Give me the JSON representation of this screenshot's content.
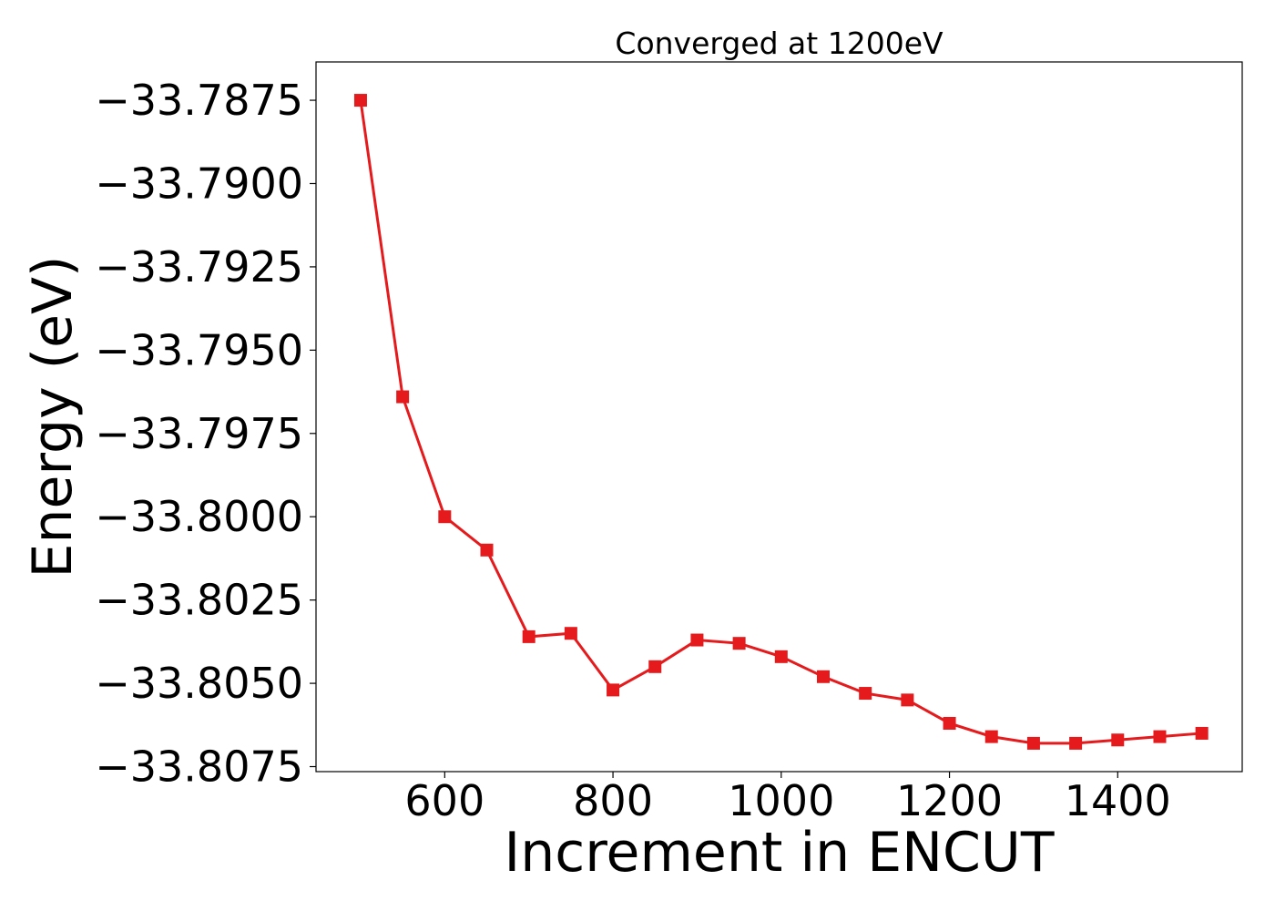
{
  "chart_data": {
    "type": "line",
    "title": "Converged at 1200eV",
    "xlabel": "Increment in ENCUT",
    "ylabel": "Energy (eV)",
    "xlim": [
      447,
      1548
    ],
    "ylim": [
      -33.80765,
      -33.78635
    ],
    "xticks": [
      600,
      800,
      1000,
      1200,
      1400
    ],
    "yticks": [
      -33.7875,
      -33.79,
      -33.7925,
      -33.795,
      -33.7975,
      -33.8,
      -33.8025,
      -33.805,
      -33.8075
    ],
    "ytick_labels": [
      "−33.7875",
      "−33.7900",
      "−33.7925",
      "−33.7950",
      "−33.7975",
      "−33.8000",
      "−33.8025",
      "−33.8050",
      "−33.8075"
    ],
    "grid": false,
    "marker": "square",
    "color": "#e41a1c",
    "series": [
      {
        "x": [
          500,
          550,
          600,
          650,
          700,
          750,
          800,
          850,
          900,
          950,
          1000,
          1050,
          1100,
          1150,
          1200,
          1250,
          1300,
          1350,
          1400,
          1450,
          1500
        ],
        "y": [
          -33.7875,
          -33.7964,
          -33.8,
          -33.801,
          -33.8036,
          -33.8035,
          -33.8052,
          -33.8045,
          -33.8037,
          -33.8038,
          -33.8042,
          -33.8048,
          -33.8053,
          -33.8055,
          -33.8062,
          -33.8066,
          -33.8068,
          -33.8068,
          -33.8067,
          -33.8066,
          -33.8065
        ]
      }
    ]
  }
}
